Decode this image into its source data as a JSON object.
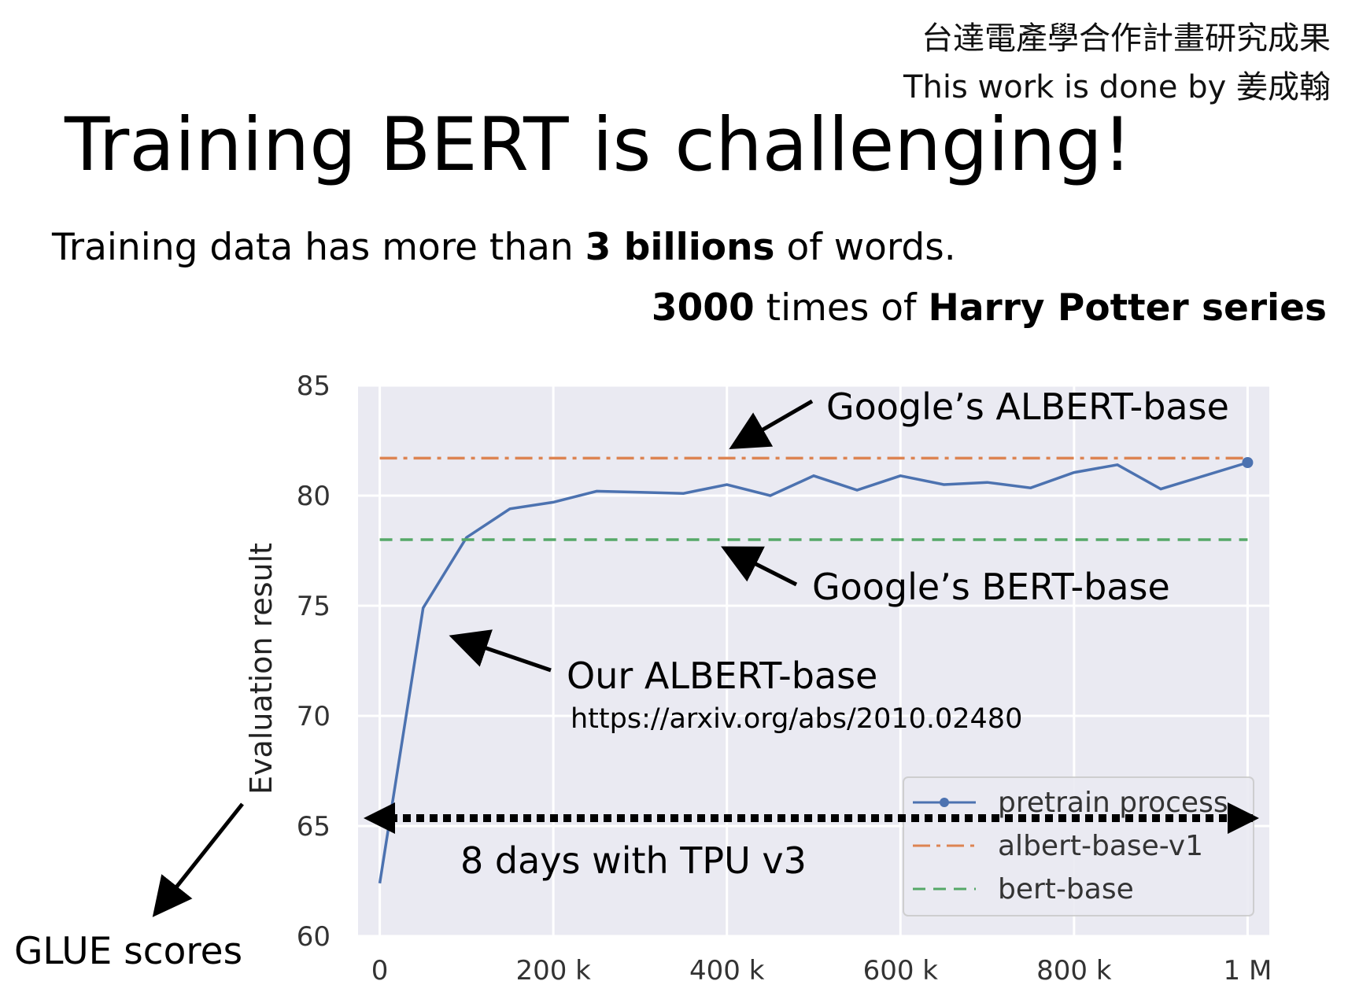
{
  "header": {
    "credit_line1": "台達電產學合作計畫研究成果",
    "credit_line2": "This work is done by 姜成翰",
    "title": "Training BERT is challenging!",
    "sub1_pre": "Training data has more than ",
    "sub1_bold": "3 billions",
    "sub1_post": " of words.",
    "sub2_bold1": "3000",
    "sub2_mid": " times of ",
    "sub2_bold2": "Harry Potter series"
  },
  "glue_label": "GLUE scores",
  "annotations": {
    "albert_google": "Google’s ALBERT-base",
    "bert_google": "Google’s BERT-base",
    "albert_ours": "Our ALBERT-base",
    "url": "https://arxiv.org/abs/2010.02480",
    "duration": "8 days with TPU v3"
  },
  "colors": {
    "plot_bg": "#eaeaf2",
    "pretrain": "#4c72b0",
    "albert": "#dd8452",
    "bert": "#55a868"
  },
  "chart_data": {
    "type": "line",
    "ylabel": "Evaluation result",
    "xlabel": "",
    "ylim": [
      60,
      85
    ],
    "xlim": [
      -25000,
      1025000
    ],
    "x_ticks": [
      0,
      200000,
      400000,
      600000,
      800000,
      1000000
    ],
    "x_tick_labels": [
      "0",
      "200 k",
      "400 k",
      "600 k",
      "800 k",
      "1 M"
    ],
    "y_ticks": [
      60,
      65,
      70,
      75,
      80,
      85
    ],
    "y_tick_labels": [
      "60",
      "65",
      "70",
      "75",
      "80",
      "85"
    ],
    "grid": true,
    "legend_position": "lower-right",
    "series": [
      {
        "name": "pretrain process",
        "style": "solid",
        "x": [
          0,
          50000,
          100000,
          150000,
          200000,
          250000,
          300000,
          350000,
          400000,
          450000,
          500000,
          550000,
          600000,
          650000,
          700000,
          750000,
          800000,
          850000,
          900000,
          950000,
          1000000
        ],
        "y": [
          62.4,
          74.9,
          78.1,
          79.4,
          79.7,
          80.2,
          80.15,
          80.1,
          80.5,
          80.0,
          80.9,
          80.25,
          80.9,
          80.5,
          80.6,
          80.35,
          81.05,
          81.4,
          80.3,
          80.9,
          81.5
        ]
      },
      {
        "name": "albert-base-v1",
        "style": "dashdot",
        "x": [
          0,
          1000000
        ],
        "y": [
          81.7,
          81.7
        ]
      },
      {
        "name": "bert-base",
        "style": "dashed",
        "x": [
          0,
          1000000
        ],
        "y": [
          78.0,
          78.0
        ]
      }
    ]
  }
}
